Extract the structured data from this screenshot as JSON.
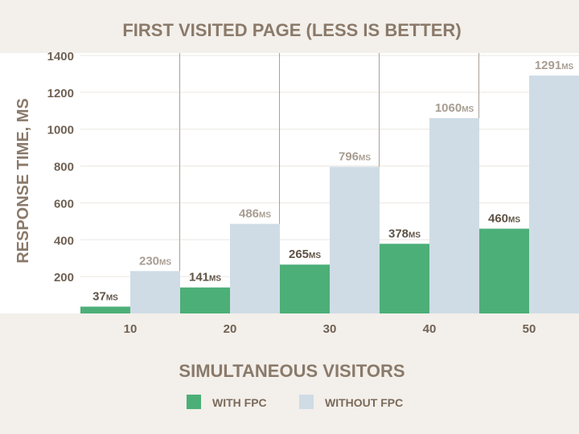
{
  "chart_data": {
    "type": "bar",
    "title": "FIRST VISITED PAGE (LESS IS BETTER)",
    "xlabel": "SIMULTANEOUS VISITORS",
    "ylabel": "RESPONSE TIME, MS",
    "categories": [
      "10",
      "20",
      "30",
      "40",
      "50"
    ],
    "ylim": [
      0,
      1400
    ],
    "yticks": [
      200,
      400,
      600,
      800,
      1000,
      1200,
      1400
    ],
    "grid": true,
    "legend_position": "bottom",
    "value_unit": "MS",
    "series": [
      {
        "name": "WITH FPC",
        "values": [
          37,
          141,
          265,
          378,
          460
        ],
        "color": "#4caf78",
        "label_color": "#5f5347"
      },
      {
        "name": "WITHOUT FPC",
        "values": [
          230,
          486,
          796,
          1060,
          1291
        ],
        "color": "#cfdce5",
        "label_color": "#a89d92"
      }
    ]
  }
}
